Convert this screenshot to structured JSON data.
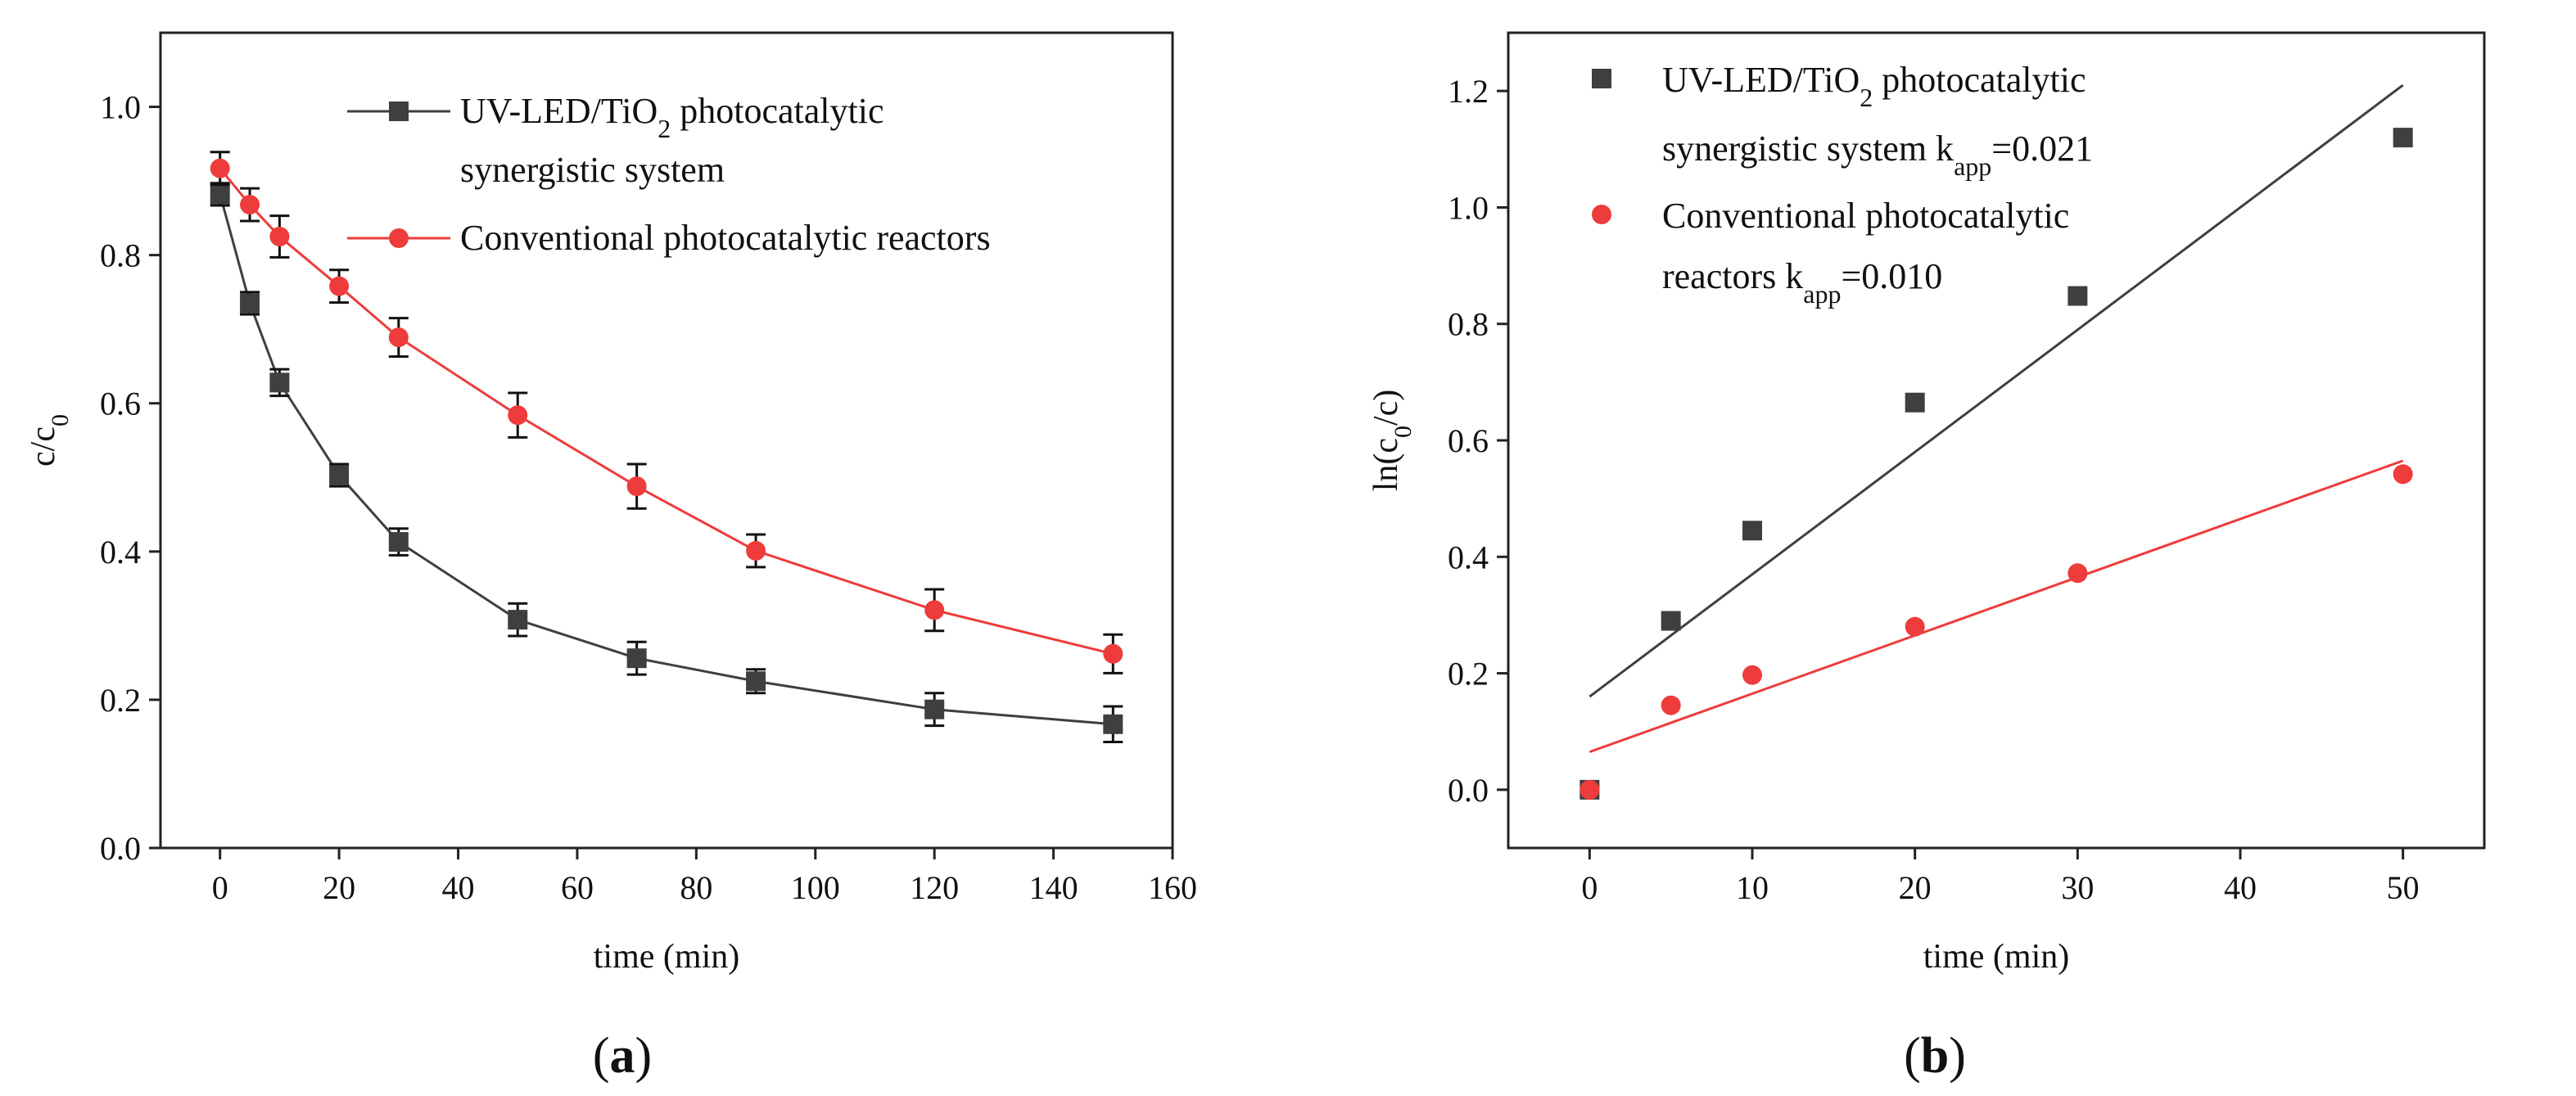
{
  "chart_data": [
    {
      "id": "a",
      "type": "line",
      "panel_label": "a",
      "xlabel": "time (min)",
      "ylabel": "c/c",
      "ylabel_sub": "0",
      "xlim": [
        -10,
        160
      ],
      "ylim": [
        0,
        1.1
      ],
      "xticks": [
        0,
        20,
        40,
        60,
        80,
        100,
        120,
        140,
        160
      ],
      "yticks": [
        0.0,
        0.2,
        0.4,
        0.6,
        0.8,
        1.0
      ],
      "xtick_labels": [
        "0",
        "20",
        "40",
        "60",
        "80",
        "100",
        "120",
        "140",
        "160"
      ],
      "ytick_labels": [
        "0.0",
        "0.2",
        "0.4",
        "0.6",
        "0.8",
        "1.0"
      ],
      "legend": {
        "position": "top-right",
        "entries": [
          {
            "line1_prefix": "UV-LED/TiO",
            "line1_sub": "2",
            "line1_suffix": " photocatalytic",
            "line2": "synergistic system"
          },
          {
            "line1": "Conventional photocatalytic reactors"
          }
        ]
      },
      "series": [
        {
          "name": "UV-LED/TiO2 photocatalytic synergistic system",
          "color": "#3f3f3f",
          "marker": "square",
          "x": [
            0,
            5,
            10,
            20,
            30,
            50,
            70,
            90,
            120,
            150
          ],
          "y": [
            0.882,
            0.735,
            0.628,
            0.503,
            0.413,
            0.308,
            0.256,
            0.225,
            0.187,
            0.167
          ],
          "err": [
            0.015,
            0.015,
            0.018,
            0.015,
            0.018,
            0.022,
            0.022,
            0.016,
            0.022,
            0.024
          ]
        },
        {
          "name": "Conventional photocatalytic reactors",
          "color": "#ee3b3b",
          "marker": "circle",
          "x": [
            0,
            5,
            10,
            20,
            30,
            50,
            70,
            90,
            120,
            150
          ],
          "y": [
            0.917,
            0.868,
            0.825,
            0.758,
            0.689,
            0.584,
            0.488,
            0.401,
            0.321,
            0.262
          ],
          "err": [
            0.022,
            0.022,
            0.028,
            0.022,
            0.026,
            0.03,
            0.03,
            0.022,
            0.028,
            0.026
          ]
        }
      ]
    },
    {
      "id": "b",
      "type": "scatter",
      "panel_label": "b",
      "xlabel": "time (min)",
      "ylabel": "ln(c",
      "ylabel_sub": "0",
      "ylabel_suffix": "/c)",
      "xlim": [
        -5,
        55
      ],
      "ylim": [
        -0.1,
        1.3
      ],
      "xticks": [
        0,
        10,
        20,
        30,
        40,
        50
      ],
      "yticks": [
        0.0,
        0.2,
        0.4,
        0.6,
        0.8,
        1.0,
        1.2
      ],
      "xtick_labels": [
        "0",
        "10",
        "20",
        "30",
        "40",
        "50"
      ],
      "ytick_labels": [
        "0.0",
        "0.2",
        "0.4",
        "0.6",
        "0.8",
        "1.0",
        "1.2"
      ],
      "legend": {
        "position": "top-left",
        "entries": [
          {
            "line1_prefix": "UV-LED/TiO",
            "line1_sub": "2",
            "line1_suffix": " photocatalytic",
            "line2": "synergistic system   k",
            "line2_sub": "app",
            "line2_suffix": "=0.021"
          },
          {
            "line1": "Conventional photocatalytic",
            "line2": "reactors   k",
            "line2_sub": "app",
            "line2_suffix": "=0.010"
          }
        ]
      },
      "series": [
        {
          "name": "UV-LED/TiO2 photocatalytic synergistic system",
          "color": "#3f3f3f",
          "marker": "square",
          "x": [
            0,
            5,
            10,
            20,
            30,
            50
          ],
          "y": [
            0.0,
            0.29,
            0.445,
            0.665,
            0.848,
            1.12
          ],
          "fit": {
            "slope": 0.021,
            "intercept": 0.16,
            "x_range": [
              0,
              50
            ]
          }
        },
        {
          "name": "Conventional photocatalytic reactors",
          "color": "#ee3b3b",
          "marker": "circle",
          "x": [
            0,
            5,
            10,
            20,
            30,
            50
          ],
          "y": [
            0.0,
            0.145,
            0.197,
            0.28,
            0.372,
            0.542
          ],
          "fit": {
            "slope": 0.01,
            "intercept": 0.065,
            "x_range": [
              0,
              50
            ]
          }
        }
      ]
    }
  ]
}
